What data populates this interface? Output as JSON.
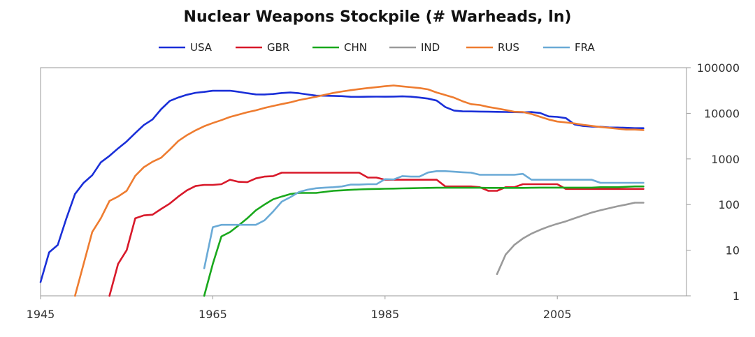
{
  "chart_data": {
    "type": "line",
    "title": "Nuclear Weapons Stockpile (# Warheads, ln)",
    "xlabel": "",
    "ylabel": "",
    "y_scale": "log",
    "xlim": [
      1945,
      2020
    ],
    "ylim": [
      1,
      100000
    ],
    "x_ticks": [
      1945,
      1965,
      1985,
      2005
    ],
    "x_tick_labels": [
      "1945",
      "1965",
      "1985",
      "2005"
    ],
    "y_ticks": [
      1,
      10,
      100,
      1000,
      10000,
      100000
    ],
    "y_tick_labels": [
      "1",
      "10",
      "100",
      "1000",
      "10000",
      "100000"
    ],
    "legend_position": "top-center",
    "series": [
      {
        "name": "USA",
        "color": "#1a2fd8",
        "x": [
          1945,
          1946,
          1947,
          1948,
          1949,
          1950,
          1951,
          1952,
          1953,
          1954,
          1955,
          1956,
          1957,
          1958,
          1959,
          1960,
          1961,
          1962,
          1963,
          1964,
          1965,
          1966,
          1967,
          1968,
          1969,
          1970,
          1971,
          1972,
          1973,
          1974,
          1975,
          1976,
          1977,
          1978,
          1979,
          1980,
          1981,
          1982,
          1983,
          1984,
          1985,
          1986,
          1987,
          1988,
          1989,
          1990,
          1991,
          1992,
          1993,
          1994,
          1995,
          1996,
          1997,
          1998,
          1999,
          2000,
          2001,
          2002,
          2003,
          2004,
          2005,
          2006,
          2007,
          2008,
          2009,
          2010,
          2011,
          2012,
          2013,
          2014,
          2015
        ],
        "values": [
          2,
          9,
          13,
          50,
          170,
          299,
          438,
          841,
          1169,
          1703,
          2422,
          3692,
          5543,
          7345,
          12298,
          18638,
          22229,
          25540,
          28133,
          29463,
          31139,
          31175,
          31255,
          29561,
          27552,
          26008,
          25830,
          26516,
          27835,
          28537,
          27519,
          25914,
          24393,
          24243,
          24107,
          23764,
          23031,
          22937,
          23154,
          23228,
          23135,
          23254,
          23490,
          23077,
          22174,
          21004,
          19008,
          13708,
          11511,
          11037,
          10979,
          10904,
          10829,
          10763,
          10698,
          10615,
          10491,
          10640,
          10161,
          8570,
          8360,
          7853,
          5709,
          5273,
          5113,
          5066,
          4897,
          4881,
          4804,
          4717,
          4717
        ]
      },
      {
        "name": "GBR",
        "color": "#d8192a",
        "x": [
          1953,
          1954,
          1955,
          1956,
          1957,
          1958,
          1959,
          1960,
          1961,
          1962,
          1963,
          1964,
          1965,
          1966,
          1967,
          1968,
          1969,
          1970,
          1971,
          1972,
          1973,
          1974,
          1975,
          1976,
          1977,
          1978,
          1979,
          1980,
          1981,
          1982,
          1983,
          1984,
          1985,
          1986,
          1987,
          1988,
          1989,
          1990,
          1991,
          1992,
          1993,
          1994,
          1995,
          1996,
          1997,
          1998,
          1999,
          2000,
          2001,
          2002,
          2003,
          2004,
          2005,
          2006,
          2007,
          2008,
          2009,
          2010,
          2011,
          2012,
          2013,
          2014,
          2015
        ],
        "values": [
          1,
          5,
          10,
          50,
          58,
          60,
          80,
          105,
          150,
          205,
          255,
          270,
          270,
          280,
          350,
          315,
          310,
          375,
          410,
          420,
          500,
          500,
          500,
          500,
          500,
          500,
          500,
          500,
          500,
          500,
          390,
          390,
          350,
          350,
          350,
          350,
          350,
          350,
          350,
          250,
          250,
          250,
          250,
          240,
          200,
          200,
          240,
          240,
          280,
          280,
          280,
          280,
          280,
          220,
          220,
          220,
          220,
          220,
          220,
          220,
          220,
          220,
          220
        ]
      },
      {
        "name": "CHN",
        "color": "#19a81c",
        "x": [
          1964,
          1965,
          1966,
          1967,
          1968,
          1969,
          1970,
          1971,
          1972,
          1973,
          1974,
          1975,
          1976,
          1977,
          1978,
          1979,
          1980,
          1981,
          1982,
          1983,
          1984,
          1985,
          1986,
          1987,
          1988,
          1989,
          1990,
          1991,
          1992,
          1993,
          1994,
          1995,
          1996,
          1997,
          1998,
          1999,
          2000,
          2001,
          2002,
          2003,
          2004,
          2005,
          2006,
          2007,
          2008,
          2009,
          2010,
          2011,
          2012,
          2013,
          2014,
          2015
        ],
        "values": [
          1,
          5,
          20,
          25,
          35,
          50,
          75,
          100,
          130,
          150,
          170,
          180,
          180,
          180,
          190,
          200,
          205,
          210,
          215,
          218,
          220,
          222,
          224,
          226,
          228,
          230,
          232,
          234,
          234,
          234,
          234,
          234,
          234,
          232,
          232,
          232,
          232,
          232,
          234,
          235,
          235,
          235,
          235,
          235,
          235,
          235,
          240,
          240,
          240,
          245,
          250,
          250
        ]
      },
      {
        "name": "IND",
        "color": "#9a9a9a",
        "x": [
          1998,
          1999,
          2000,
          2001,
          2002,
          2003,
          2004,
          2005,
          2006,
          2007,
          2008,
          2009,
          2010,
          2011,
          2012,
          2013,
          2014,
          2015
        ],
        "values": [
          3,
          8,
          13,
          18,
          23,
          28,
          33,
          38,
          43,
          50,
          58,
          67,
          75,
          83,
          92,
          100,
          110,
          110
        ]
      },
      {
        "name": "RUS",
        "color": "#ee7c30",
        "x": [
          1949,
          1950,
          1951,
          1952,
          1953,
          1954,
          1955,
          1956,
          1957,
          1958,
          1959,
          1960,
          1961,
          1962,
          1963,
          1964,
          1965,
          1966,
          1967,
          1968,
          1969,
          1970,
          1971,
          1972,
          1973,
          1974,
          1975,
          1976,
          1977,
          1978,
          1979,
          1980,
          1981,
          1982,
          1983,
          1984,
          1985,
          1986,
          1987,
          1988,
          1989,
          1990,
          1991,
          1992,
          1993,
          1994,
          1995,
          1996,
          1997,
          1998,
          1999,
          2000,
          2001,
          2002,
          2003,
          2004,
          2005,
          2006,
          2007,
          2008,
          2009,
          2010,
          2011,
          2012,
          2013,
          2014,
          2015
        ],
        "values": [
          1,
          5,
          25,
          50,
          120,
          150,
          200,
          426,
          660,
          869,
          1060,
          1605,
          2471,
          3322,
          4238,
          5221,
          6129,
          7089,
          8339,
          9399,
          10538,
          11643,
          13092,
          14478,
          15915,
          17385,
          19443,
          21205,
          23044,
          25393,
          27935,
          30062,
          32049,
          33952,
          35804,
          37431,
          39197,
          40723,
          38859,
          37333,
          35805,
          33417,
          28595,
          25155,
          22101,
          18399,
          15871,
          15200,
          13800,
          12800,
          11800,
          10800,
          10700,
          9700,
          8400,
          7300,
          6600,
          6300,
          6000,
          5600,
          5300,
          5000,
          4800,
          4600,
          4400,
          4400,
          4300
        ]
      },
      {
        "name": "FRA",
        "color": "#6aaad6",
        "x": [
          1964,
          1965,
          1966,
          1967,
          1968,
          1969,
          1970,
          1971,
          1972,
          1973,
          1974,
          1975,
          1976,
          1977,
          1978,
          1979,
          1980,
          1981,
          1982,
          1983,
          1984,
          1985,
          1986,
          1987,
          1988,
          1989,
          1990,
          1991,
          1992,
          1993,
          1994,
          1995,
          1996,
          1997,
          1998,
          1999,
          2000,
          2001,
          2002,
          2003,
          2004,
          2005,
          2006,
          2007,
          2008,
          2009,
          2010,
          2011,
          2012,
          2013,
          2014,
          2015
        ],
        "values": [
          4,
          32,
          36,
          36,
          36,
          36,
          36,
          45,
          70,
          116,
          145,
          188,
          212,
          228,
          235,
          240,
          250,
          274,
          274,
          280,
          280,
          360,
          355,
          420,
          410,
          410,
          505,
          540,
          540,
          525,
          510,
          500,
          450,
          450,
          450,
          450,
          450,
          470,
          350,
          350,
          350,
          350,
          350,
          350,
          350,
          350,
          300,
          300,
          300,
          300,
          300,
          300
        ]
      }
    ]
  }
}
